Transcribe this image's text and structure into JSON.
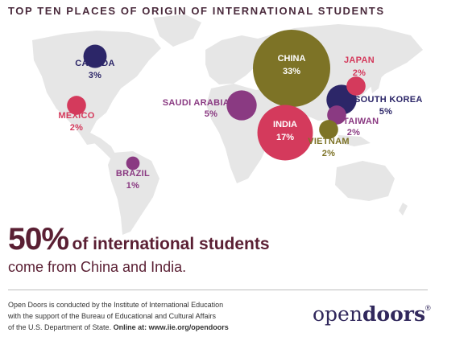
{
  "title": "TOP TEN PLACES OF ORIGIN OF INTERNATIONAL STUDENTS",
  "chart_data": {
    "type": "bubble-map",
    "unit": "%",
    "points": [
      {
        "name": "CHINA",
        "value": 33,
        "label": "33%",
        "color": "#7d7326"
      },
      {
        "name": "INDIA",
        "value": 17,
        "label": "17%",
        "color": "#d43a5c"
      },
      {
        "name": "SOUTH KOREA",
        "value": 5,
        "label": "5%",
        "color": "#2c2668"
      },
      {
        "name": "SAUDI ARABIA",
        "value": 5,
        "label": "5%",
        "color": "#8a3a82"
      },
      {
        "name": "CANADA",
        "value": 3,
        "label": "3%",
        "color": "#2c2668"
      },
      {
        "name": "MEXICO",
        "value": 2,
        "label": "2%",
        "color": "#d43a5c"
      },
      {
        "name": "JAPAN",
        "value": 2,
        "label": "2%",
        "color": "#d43a5c"
      },
      {
        "name": "TAIWAN",
        "value": 2,
        "label": "2%",
        "color": "#8a3a82"
      },
      {
        "name": "VIETNAM",
        "value": 2,
        "label": "2%",
        "color": "#7d7326"
      },
      {
        "name": "BRAZIL",
        "value": 1,
        "label": "1%",
        "color": "#8a3a82"
      }
    ]
  },
  "headline": {
    "big": "50%",
    "rest": "of international students"
  },
  "subline": "come from China and India.",
  "credit": {
    "line1": "Open Doors is conducted by the Institute of International Education",
    "line2": "with the support of the Bureau of Educational and Cultural Affairs",
    "line3": "of the U.S. Department of State.",
    "link": "Online at: www.iie.org/opendoors"
  },
  "logo": {
    "part1": "open",
    "part2": "doors",
    "mark": "®"
  }
}
